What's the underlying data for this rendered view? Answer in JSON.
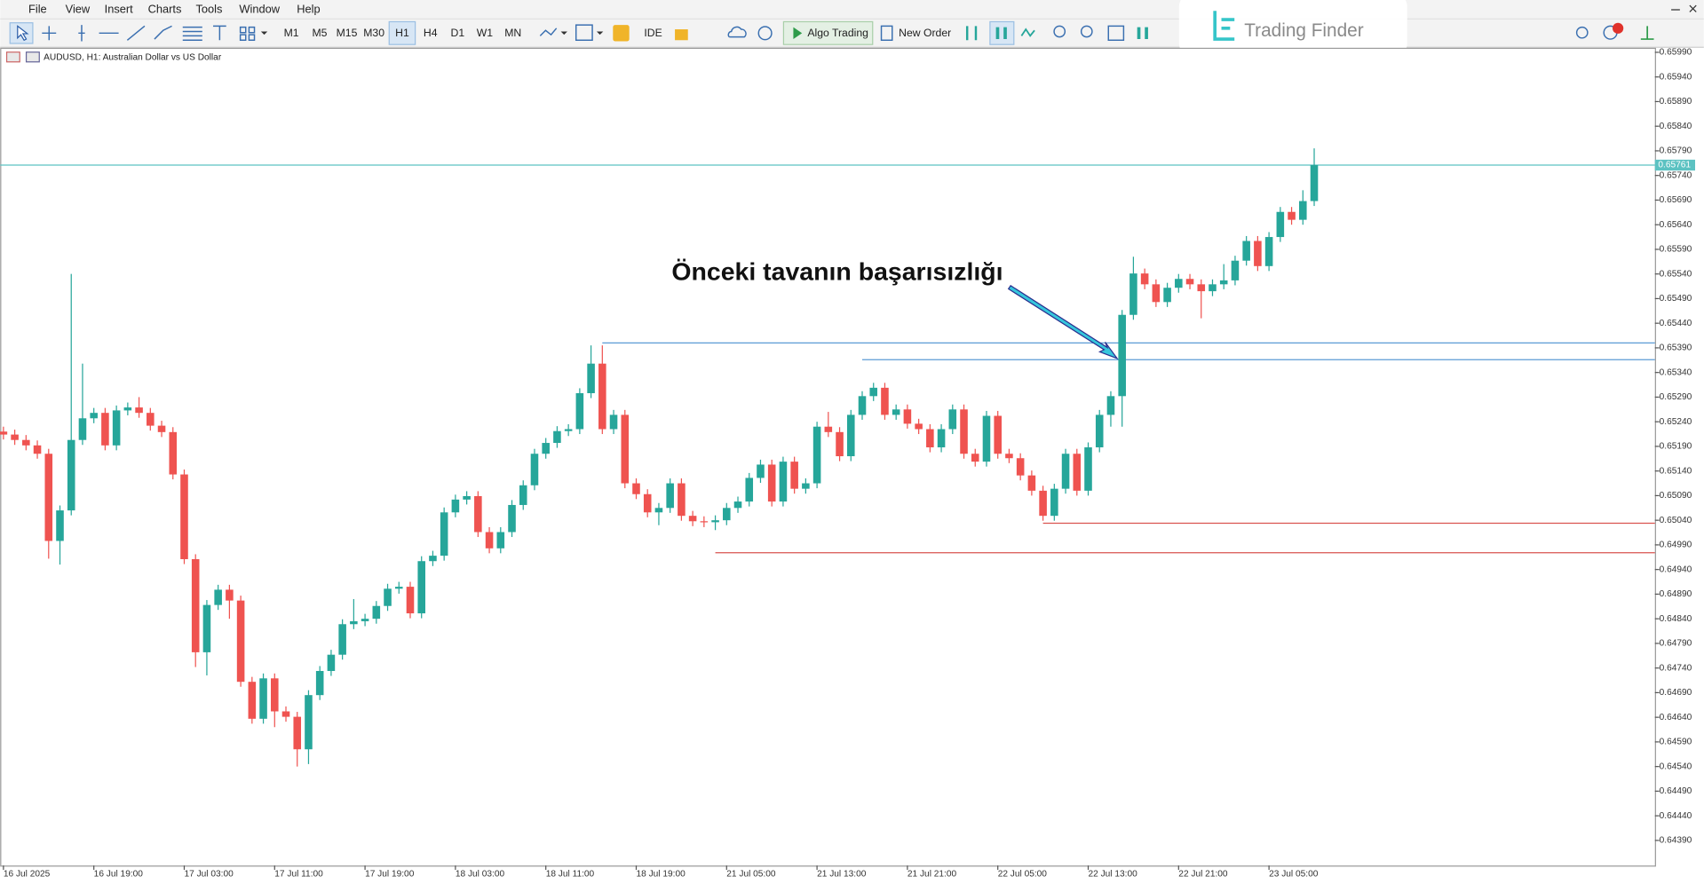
{
  "menu": [
    "File",
    "View",
    "Insert",
    "Charts",
    "Tools",
    "Window",
    "Help"
  ],
  "toolbar": {
    "timeframes": [
      "M1",
      "M5",
      "M15",
      "M30",
      "H1",
      "H4",
      "D1",
      "W1",
      "MN"
    ],
    "ide": "IDE",
    "algo": "Algo Trading",
    "new_order": "New Order"
  },
  "watermark": "Trading Finder",
  "chart_data": {
    "type": "candlestick",
    "title": "AUDUSD, H1:  Australian Dollar vs US Dollar",
    "annotation": "Önceki tavanın başarısızlığı",
    "up_color": "#26a69a",
    "down_color": "#ef5350",
    "categories": [
      "16 Jul 2025",
      null,
      null,
      null,
      null,
      null,
      null,
      null,
      "16 Jul 19:00",
      null,
      null,
      null,
      null,
      null,
      null,
      null,
      "17 Jul 03:00",
      null,
      null,
      null,
      null,
      null,
      null,
      null,
      "17 Jul 11:00",
      null,
      null,
      null,
      null,
      null,
      null,
      null,
      "17 Jul 19:00",
      null,
      null,
      null,
      null,
      null,
      null,
      null,
      "18 Jul 03:00",
      null,
      null,
      null,
      null,
      null,
      null,
      null,
      "18 Jul 11:00",
      null,
      null,
      null,
      null,
      null,
      null,
      null,
      "18 Jul 19:00",
      null,
      null,
      null,
      null,
      null,
      null,
      null,
      "21 Jul 05:00",
      null,
      null,
      null,
      null,
      null,
      null,
      null,
      "21 Jul 13:00",
      null,
      null,
      null,
      null,
      null,
      null,
      null,
      "21 Jul 21:00",
      null,
      null,
      null,
      null,
      null,
      null,
      null,
      "22 Jul 05:00",
      null,
      null,
      null,
      null,
      null,
      null,
      null,
      "22 Jul 13:00",
      null,
      null,
      null,
      null,
      null,
      null,
      null,
      "22 Jul 21:00",
      null,
      null,
      null,
      null,
      null,
      null,
      null,
      "23 Jul 05:00",
      null,
      null,
      null,
      null
    ],
    "open": [
      0.6522,
      0.65214,
      0.65203,
      0.65192,
      0.65175,
      0.64998,
      0.6506,
      0.65203,
      0.65247,
      0.65258,
      0.65192,
      0.65263,
      0.65269,
      0.65258,
      0.65232,
      0.65219,
      0.65133,
      0.64961,
      0.64772,
      0.64868,
      0.64899,
      0.64877,
      0.64712,
      0.64637,
      0.64719,
      0.64652,
      0.64641,
      0.64575,
      0.64685,
      0.64734,
      0.64767,
      0.64829,
      0.64835,
      0.6484,
      0.64866,
      0.64901,
      0.64905,
      0.64851,
      0.64957,
      0.64968,
      0.65056,
      0.65082,
      0.65089,
      0.65016,
      0.64983,
      0.65016,
      0.65071,
      0.65111,
      0.65175,
      0.65197,
      0.65221,
      0.65225,
      0.65298,
      0.65358,
      0.65225,
      0.65254,
      0.65115,
      0.65093,
      0.65056,
      0.65065,
      0.65115,
      0.65049,
      0.65038,
      0.65036,
      0.6504,
      0.65065,
      0.65078,
      0.65126,
      0.65153,
      0.65078,
      0.65159,
      0.65104,
      0.65115,
      0.6523,
      0.65219,
      0.6517,
      0.65254,
      0.65292,
      0.65309,
      0.65254,
      0.65265,
      0.65236,
      0.65225,
      0.65188,
      0.65225,
      0.65265,
      0.65175,
      0.65159,
      0.65252,
      0.65175,
      0.65166,
      0.65131,
      0.651,
      0.65049,
      0.65104,
      0.65175,
      0.651,
      0.65188,
      0.65254,
      0.65292,
      0.65457,
      0.65541,
      0.65519,
      0.65483,
      0.65512,
      0.6553,
      0.65519,
      0.65505,
      0.65519,
      0.65527,
      0.65567,
      0.65607,
      0.65556,
      0.65615,
      0.65666,
      0.6565,
      0.65688
    ],
    "high": [
      0.6523,
      0.65224,
      0.65213,
      0.65202,
      0.65185,
      0.6507,
      0.6554,
      0.65358,
      0.65268,
      0.65268,
      0.65273,
      0.65279,
      0.6529,
      0.65268,
      0.65242,
      0.65229,
      0.65143,
      0.64971,
      0.64878,
      0.64909,
      0.64909,
      0.64887,
      0.64722,
      0.64729,
      0.64729,
      0.64662,
      0.64651,
      0.64695,
      0.64744,
      0.64777,
      0.64839,
      0.6488,
      0.6485,
      0.64876,
      0.64911,
      0.64915,
      0.64915,
      0.64967,
      0.64978,
      0.65066,
      0.65092,
      0.65099,
      0.65099,
      0.65026,
      0.65026,
      0.65081,
      0.65121,
      0.65185,
      0.65207,
      0.65231,
      0.65235,
      0.65308,
      0.65395,
      0.65395,
      0.65264,
      0.65264,
      0.65125,
      0.65103,
      0.65075,
      0.65125,
      0.65125,
      0.65059,
      0.65048,
      0.6505,
      0.65075,
      0.65088,
      0.65136,
      0.65163,
      0.65163,
      0.65169,
      0.65169,
      0.65125,
      0.6524,
      0.6526,
      0.65229,
      0.65264,
      0.65302,
      0.65319,
      0.65319,
      0.65275,
      0.65275,
      0.65246,
      0.65235,
      0.65235,
      0.65275,
      0.65275,
      0.65185,
      0.65262,
      0.65262,
      0.65185,
      0.65176,
      0.65141,
      0.6511,
      0.65114,
      0.65185,
      0.65185,
      0.65198,
      0.65264,
      0.65302,
      0.65467,
      0.65575,
      0.65551,
      0.65529,
      0.65522,
      0.6554,
      0.6554,
      0.65529,
      0.65529,
      0.6556,
      0.65577,
      0.65617,
      0.65617,
      0.65625,
      0.65676,
      0.65676,
      0.6571,
      0.65795
    ],
    "low": [
      0.65204,
      0.65193,
      0.65182,
      0.65165,
      0.64962,
      0.6495,
      0.6505,
      0.65193,
      0.65237,
      0.65182,
      0.65182,
      0.65253,
      0.65248,
      0.65222,
      0.65209,
      0.65123,
      0.64951,
      0.64742,
      0.64725,
      0.64858,
      0.6484,
      0.64702,
      0.64627,
      0.64627,
      0.6462,
      0.64631,
      0.6454,
      0.64545,
      0.64675,
      0.64724,
      0.64757,
      0.64819,
      0.64825,
      0.6483,
      0.64856,
      0.64891,
      0.64841,
      0.64841,
      0.64947,
      0.64958,
      0.65046,
      0.65072,
      0.65006,
      0.64973,
      0.64973,
      0.65006,
      0.65061,
      0.65101,
      0.65165,
      0.65187,
      0.65211,
      0.65215,
      0.65288,
      0.65215,
      0.65215,
      0.65105,
      0.65083,
      0.65046,
      0.6503,
      0.65055,
      0.65039,
      0.65028,
      0.65026,
      0.6502,
      0.6503,
      0.65055,
      0.65068,
      0.65116,
      0.65068,
      0.65068,
      0.65094,
      0.65094,
      0.65105,
      0.65209,
      0.6516,
      0.6516,
      0.65244,
      0.65282,
      0.65244,
      0.65244,
      0.65226,
      0.65215,
      0.65178,
      0.65178,
      0.65215,
      0.65165,
      0.65149,
      0.65149,
      0.65165,
      0.65156,
      0.65121,
      0.6509,
      0.65039,
      0.65039,
      0.65094,
      0.6509,
      0.6509,
      0.65178,
      0.6523,
      0.6523,
      0.65447,
      0.65509,
      0.65473,
      0.65473,
      0.65502,
      0.65509,
      0.6545,
      0.65495,
      0.65509,
      0.65517,
      0.65557,
      0.65546,
      0.65546,
      0.65605,
      0.6564,
      0.6564,
      0.65678
    ],
    "close": [
      0.65214,
      0.65203,
      0.65192,
      0.65175,
      0.64998,
      0.6506,
      0.65203,
      0.65247,
      0.65258,
      0.65192,
      0.65263,
      0.65269,
      0.65258,
      0.65232,
      0.65219,
      0.65133,
      0.64961,
      0.64772,
      0.64868,
      0.64899,
      0.64877,
      0.64712,
      0.64637,
      0.64719,
      0.64652,
      0.64641,
      0.64575,
      0.64685,
      0.64734,
      0.64767,
      0.64829,
      0.64835,
      0.6484,
      0.64866,
      0.64901,
      0.64905,
      0.64851,
      0.64957,
      0.64968,
      0.65056,
      0.65082,
      0.65089,
      0.65016,
      0.64983,
      0.65016,
      0.65071,
      0.65111,
      0.65175,
      0.65197,
      0.65221,
      0.65225,
      0.65298,
      0.65358,
      0.65225,
      0.65254,
      0.65115,
      0.65093,
      0.65056,
      0.65065,
      0.65115,
      0.65049,
      0.65038,
      0.65036,
      0.6504,
      0.65065,
      0.65078,
      0.65126,
      0.65153,
      0.65078,
      0.65159,
      0.65104,
      0.65115,
      0.6523,
      0.65219,
      0.6517,
      0.65254,
      0.65292,
      0.65309,
      0.65254,
      0.65265,
      0.65236,
      0.65225,
      0.65188,
      0.65225,
      0.65265,
      0.65175,
      0.65159,
      0.65252,
      0.65175,
      0.65166,
      0.65131,
      0.651,
      0.65049,
      0.65104,
      0.65175,
      0.651,
      0.65188,
      0.65254,
      0.65292,
      0.65457,
      0.65541,
      0.65519,
      0.65483,
      0.65512,
      0.6553,
      0.65519,
      0.65505,
      0.65519,
      0.65527,
      0.65567,
      0.65607,
      0.65556,
      0.65615,
      0.65666,
      0.6565,
      0.65688,
      0.65761
    ],
    "ylim": [
      0.64339,
      0.65997
    ],
    "yticks": [
      {
        "value": 0.6439,
        "label": "0.64390"
      },
      {
        "value": 0.6444,
        "label": "0.64440"
      },
      {
        "value": 0.6449,
        "label": "0.64490"
      },
      {
        "value": 0.6454,
        "label": "0.64540"
      },
      {
        "value": 0.6459,
        "label": "0.64590"
      },
      {
        "value": 0.6464,
        "label": "0.64640"
      },
      {
        "value": 0.6469,
        "label": "0.64690"
      },
      {
        "value": 0.6474,
        "label": "0.64740"
      },
      {
        "value": 0.6479,
        "label": "0.64790"
      },
      {
        "value": 0.6484,
        "label": "0.64840"
      },
      {
        "value": 0.6489,
        "label": "0.64890"
      },
      {
        "value": 0.6494,
        "label": "0.64940"
      },
      {
        "value": 0.6499,
        "label": "0.64990"
      },
      {
        "value": 0.6504,
        "label": "0.65040"
      },
      {
        "value": 0.6509,
        "label": "0.65090"
      },
      {
        "value": 0.6514,
        "label": "0.65140"
      },
      {
        "value": 0.6519,
        "label": "0.65190"
      },
      {
        "value": 0.6524,
        "label": "0.65240"
      },
      {
        "value": 0.6529,
        "label": "0.65290"
      },
      {
        "value": 0.6534,
        "label": "0.65340"
      },
      {
        "value": 0.6539,
        "label": "0.65390"
      },
      {
        "value": 0.6544,
        "label": "0.65440"
      },
      {
        "value": 0.6549,
        "label": "0.65490"
      },
      {
        "value": 0.6554,
        "label": "0.65540"
      },
      {
        "value": 0.6559,
        "label": "0.65590"
      },
      {
        "value": 0.6564,
        "label": "0.65640"
      },
      {
        "value": 0.6569,
        "label": "0.65690"
      },
      {
        "value": 0.6574,
        "label": "0.65740"
      },
      {
        "value": 0.6579,
        "label": "0.65790"
      },
      {
        "value": 0.6584,
        "label": "0.65840"
      },
      {
        "value": 0.6589,
        "label": "0.65890"
      },
      {
        "value": 0.6594,
        "label": "0.65940"
      },
      {
        "value": 0.6599,
        "label": "0.65990"
      }
    ],
    "levels": [
      {
        "value": 0.65761,
        "color": "#5cc2c2"
      },
      {
        "value": 0.654,
        "color": "#5b9bd5"
      },
      {
        "value": 0.65366,
        "color": "#5b9bd5"
      },
      {
        "value": 0.65034,
        "color": "#d9534f"
      },
      {
        "value": 0.64974,
        "color": "#d9534f"
      }
    ]
  }
}
